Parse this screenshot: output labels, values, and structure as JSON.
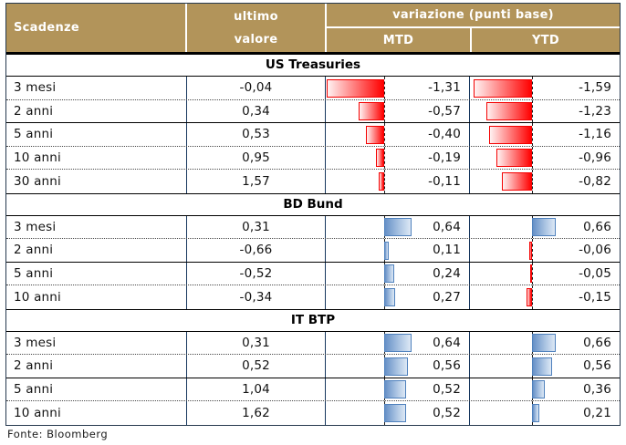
{
  "header": {
    "scadenze": "Scadenze",
    "ultimo_line1": "ultimo",
    "ultimo_line2": "valore",
    "variazione": "variazione (punti base)",
    "mtd": "MTD",
    "ytd": "YTD"
  },
  "footer": {
    "source": "Fonte: Bloomberg"
  },
  "colors": {
    "header_bg": "#B2945A",
    "header_text": "#FFFFFF",
    "negative_bar": "#FF0000",
    "positive_bar_border": "#4F81BD",
    "positive_bar_fill": "#6690C7",
    "grid_line": "#17375E"
  },
  "chart_data": {
    "type": "table",
    "columns": [
      "Scadenze",
      "ultimo valore",
      "MTD",
      "YTD"
    ],
    "column_group": {
      "label": "variazione (punti base)",
      "columns": [
        "MTD",
        "YTD"
      ]
    },
    "bar_columns": [
      "MTD",
      "YTD"
    ],
    "negative_bar_color": "red",
    "positive_bar_color": "blue",
    "sections": [
      {
        "title": "US Treasuries",
        "rows": [
          {
            "label": "3 mesi",
            "ultimo": "-0,04",
            "mtd": "-1,31",
            "ytd": "-1,59",
            "mtd_value": -1.31,
            "ytd_value": -1.59
          },
          {
            "label": "2 anni",
            "ultimo": "0,34",
            "mtd": "-0,57",
            "ytd": "-1,23",
            "mtd_value": -0.57,
            "ytd_value": -1.23
          },
          {
            "label": "5 anni",
            "ultimo": "0,53",
            "mtd": "-0,40",
            "ytd": "-1,16",
            "mtd_value": -0.4,
            "ytd_value": -1.16
          },
          {
            "label": "10 anni",
            "ultimo": "0,95",
            "mtd": "-0,19",
            "ytd": "-0,96",
            "mtd_value": -0.19,
            "ytd_value": -0.96
          },
          {
            "label": "30 anni",
            "ultimo": "1,57",
            "mtd": "-0,11",
            "ytd": "-0,82",
            "mtd_value": -0.11,
            "ytd_value": -0.82
          }
        ]
      },
      {
        "title": "BD Bund",
        "rows": [
          {
            "label": "3 mesi",
            "ultimo": "0,31",
            "mtd": "0,64",
            "ytd": "0,66",
            "mtd_value": 0.64,
            "ytd_value": 0.66
          },
          {
            "label": "2 anni",
            "ultimo": "-0,66",
            "mtd": "0,11",
            "ytd": "-0,06",
            "mtd_value": 0.11,
            "ytd_value": -0.06
          },
          {
            "label": "5 anni",
            "ultimo": "-0,52",
            "mtd": "0,24",
            "ytd": "-0,05",
            "mtd_value": 0.24,
            "ytd_value": -0.05
          },
          {
            "label": "10 anni",
            "ultimo": "-0,34",
            "mtd": "0,27",
            "ytd": "-0,15",
            "mtd_value": 0.27,
            "ytd_value": -0.15
          }
        ]
      },
      {
        "title": "IT BTP",
        "rows": [
          {
            "label": "3 mesi",
            "ultimo": "0,31",
            "mtd": "0,64",
            "ytd": "0,66",
            "mtd_value": 0.64,
            "ytd_value": 0.66
          },
          {
            "label": "2 anni",
            "ultimo": "0,52",
            "mtd": "0,56",
            "ytd": "0,56",
            "mtd_value": 0.56,
            "ytd_value": 0.56
          },
          {
            "label": "5 anni",
            "ultimo": "1,04",
            "mtd": "0,52",
            "ytd": "0,36",
            "mtd_value": 0.52,
            "ytd_value": 0.36
          },
          {
            "label": "10 anni",
            "ultimo": "1,62",
            "mtd": "0,52",
            "ytd": "0,21",
            "mtd_value": 0.52,
            "ytd_value": 0.21
          }
        ]
      }
    ]
  }
}
